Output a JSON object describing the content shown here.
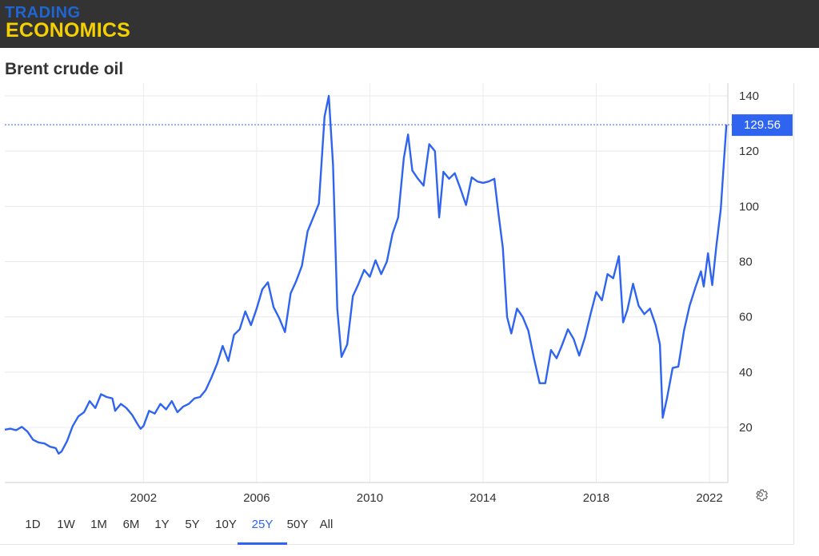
{
  "header": {
    "logo_top": "TRADING",
    "logo_bottom": "ECONOMICS"
  },
  "chart_title": "Brent crude oil",
  "current_value_label": "129.56",
  "ranges": [
    "1D",
    "1W",
    "1M",
    "6M",
    "1Y",
    "5Y",
    "10Y",
    "25Y",
    "50Y",
    "All"
  ],
  "active_range": "25Y",
  "colors": {
    "line": "#2e64f0",
    "header_bg": "#333333",
    "logo_blue": "#1f66d3",
    "logo_yellow": "#f4d000"
  },
  "icons": {
    "settings": "gear-icon"
  },
  "chart_data": {
    "type": "line",
    "title": "Brent crude oil",
    "xlabel": "",
    "ylabel": "",
    "x_ticks": [
      "2002",
      "2006",
      "2010",
      "2014",
      "2018",
      "2022"
    ],
    "y_ticks": [
      20,
      40,
      60,
      80,
      100,
      120,
      140
    ],
    "ylim": [
      0,
      143
    ],
    "xlim": [
      1997.1,
      2022.65
    ],
    "grid": true,
    "last_value": 129.56,
    "series": [
      {
        "x": [
          1997.1,
          1997.3,
          1997.5,
          1997.7,
          1997.9,
          1998.1,
          1998.3,
          1998.5,
          1998.7,
          1998.9,
          1999.0,
          1999.1,
          1999.3,
          1999.5,
          1999.7,
          1999.9,
          2000.1,
          2000.3,
          2000.5,
          2000.7,
          2000.9,
          2001.0,
          2001.2,
          2001.4,
          2001.6,
          2001.8,
          2001.9,
          2002.0,
          2002.2,
          2002.4,
          2002.6,
          2002.8,
          2003.0,
          2003.2,
          2003.4,
          2003.6,
          2003.8,
          2004.0,
          2004.2,
          2004.4,
          2004.6,
          2004.8,
          2005.0,
          2005.2,
          2005.4,
          2005.6,
          2005.8,
          2006.0,
          2006.2,
          2006.4,
          2006.6,
          2006.8,
          2007.0,
          2007.2,
          2007.4,
          2007.6,
          2007.8,
          2008.0,
          2008.2,
          2008.4,
          2008.55,
          2008.7,
          2008.85,
          2009.0,
          2009.2,
          2009.4,
          2009.6,
          2009.8,
          2010.0,
          2010.2,
          2010.4,
          2010.6,
          2010.8,
          2011.0,
          2011.2,
          2011.35,
          2011.5,
          2011.7,
          2011.9,
          2012.1,
          2012.3,
          2012.45,
          2012.6,
          2012.8,
          2013.0,
          2013.2,
          2013.4,
          2013.6,
          2013.8,
          2014.0,
          2014.2,
          2014.4,
          2014.55,
          2014.7,
          2014.85,
          2015.0,
          2015.2,
          2015.4,
          2015.6,
          2015.8,
          2016.0,
          2016.2,
          2016.4,
          2016.6,
          2016.8,
          2017.0,
          2017.2,
          2017.4,
          2017.6,
          2017.8,
          2018.0,
          2018.2,
          2018.4,
          2018.6,
          2018.8,
          2018.95,
          2019.1,
          2019.3,
          2019.5,
          2019.7,
          2019.9,
          2020.1,
          2020.25,
          2020.35,
          2020.5,
          2020.7,
          2020.9,
          2021.1,
          2021.3,
          2021.5,
          2021.7,
          2021.8,
          2021.95,
          2022.1,
          2022.25,
          2022.4,
          2022.6
        ],
        "y": [
          19.2,
          19.5,
          19.0,
          20.2,
          18.5,
          15.5,
          14.5,
          14.2,
          13.0,
          12.5,
          10.5,
          11.2,
          15.0,
          20.5,
          24.0,
          25.5,
          29.5,
          27.0,
          32.0,
          31.0,
          30.5,
          26.0,
          28.5,
          27.0,
          24.5,
          21.0,
          19.5,
          20.5,
          26.0,
          25.0,
          28.5,
          26.5,
          29.5,
          25.5,
          27.5,
          28.5,
          30.5,
          31.0,
          33.5,
          38.0,
          43.0,
          49.5,
          44.0,
          53.5,
          55.5,
          62.0,
          57.0,
          63.0,
          70.0,
          72.5,
          63.5,
          59.5,
          54.5,
          68.5,
          73.0,
          78.5,
          91.0,
          96.0,
          101.0,
          132.5,
          140.0,
          115.0,
          63.0,
          45.5,
          50.0,
          67.5,
          72.0,
          77.0,
          74.5,
          80.5,
          75.5,
          80.0,
          90.0,
          96.0,
          117.5,
          126.0,
          113.0,
          110.0,
          107.5,
          122.5,
          120.0,
          96.0,
          112.5,
          110.0,
          112.0,
          106.5,
          100.5,
          110.5,
          109.0,
          108.5,
          109.0,
          110.0,
          97.0,
          85.0,
          60.0,
          54.0,
          63.0,
          60.0,
          55.0,
          45.0,
          36.0,
          36.0,
          48.0,
          45.0,
          50.0,
          55.5,
          52.0,
          46.0,
          52.5,
          61.0,
          69.0,
          66.0,
          75.5,
          74.0,
          82.0,
          58.0,
          62.5,
          72.0,
          64.0,
          61.0,
          63.0,
          57.0,
          50.0,
          23.5,
          30.5,
          41.5,
          42.0,
          55.0,
          64.0,
          70.5,
          76.5,
          71.0,
          83.0,
          71.5,
          86.0,
          99.0,
          129.56
        ]
      }
    ]
  }
}
